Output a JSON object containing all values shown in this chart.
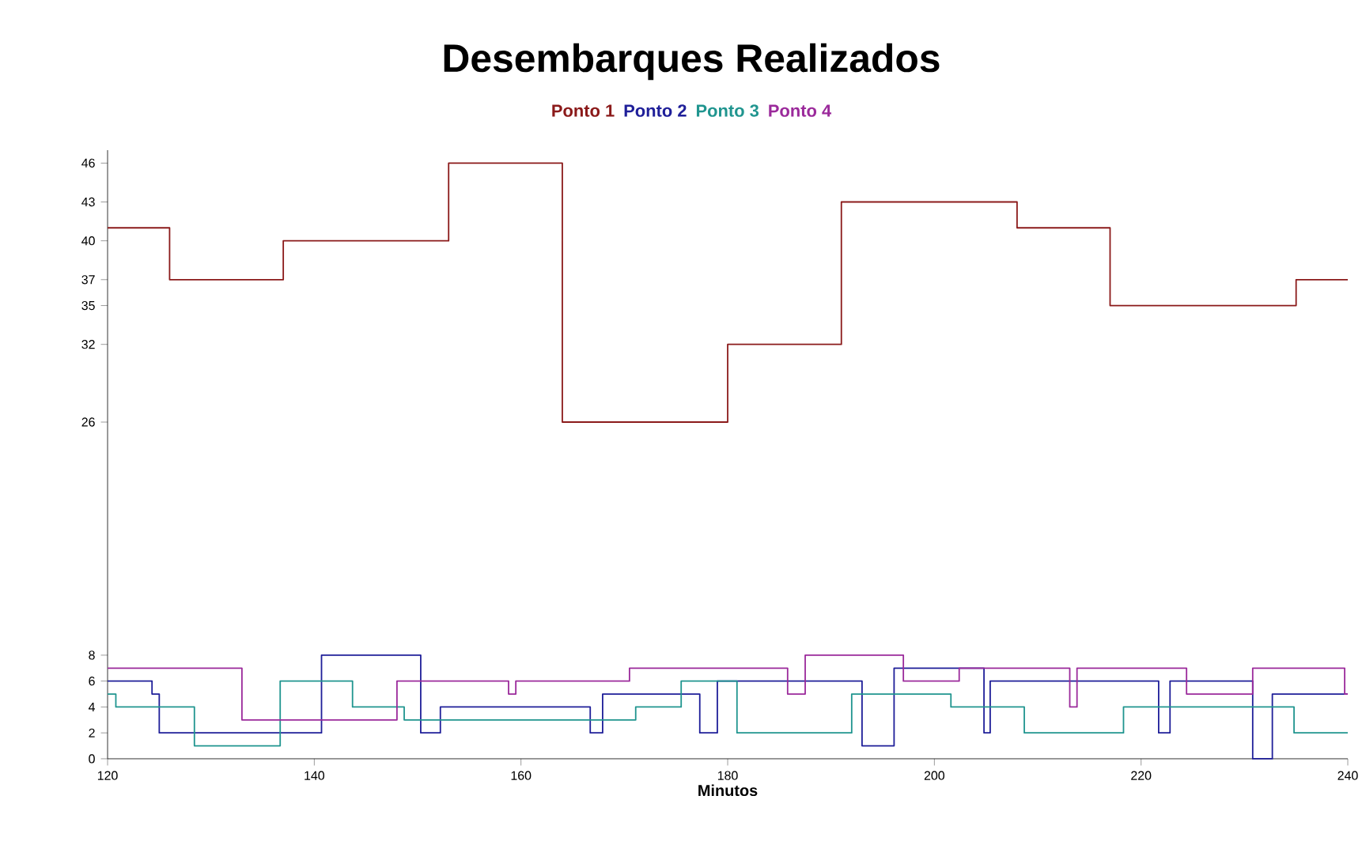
{
  "chart_data": {
    "type": "step",
    "title": "Desembarques Realizados",
    "xlabel": "Minutos",
    "xlim": [
      120,
      240
    ],
    "xticks": [
      120,
      140,
      160,
      180,
      200,
      220,
      240
    ],
    "ylim": [
      0,
      47
    ],
    "yticks": [
      0,
      2,
      4,
      6,
      8,
      26,
      32,
      35,
      37,
      40,
      43,
      46
    ],
    "grid": false,
    "legend": "top",
    "marker": "none",
    "line_style": "solid",
    "series": [
      {
        "name": "Ponto 1",
        "color": "#8b1a1a",
        "x": [
          120,
          126,
          137,
          153,
          164,
          180,
          191,
          208,
          217,
          235,
          240
        ],
        "values": [
          41,
          37,
          40,
          46,
          26,
          32,
          43,
          41,
          35,
          37,
          37
        ]
      },
      {
        "name": "Ponto 2",
        "color": "#1f1f99",
        "x": [
          120,
          124.3,
          125,
          140.7,
          150.3,
          152.2,
          166.7,
          167.9,
          177.3,
          179,
          193,
          196.1,
          204.8,
          205.4,
          221.7,
          222.8,
          230.8,
          232.7,
          240
        ],
        "values": [
          6,
          5,
          2,
          8,
          2,
          4,
          2,
          5,
          2,
          6,
          1,
          7,
          2,
          6,
          2,
          6,
          0,
          5,
          5
        ]
      },
      {
        "name": "Ponto 3",
        "color": "#20958f",
        "x": [
          120,
          120.8,
          128.4,
          136.7,
          143.7,
          148.7,
          171.1,
          175.5,
          180.9,
          192,
          201.6,
          208.7,
          218.3,
          234.8,
          240
        ],
        "values": [
          5,
          4,
          1,
          6,
          4,
          3,
          4,
          6,
          2,
          5,
          4,
          2,
          4,
          2,
          2
        ]
      },
      {
        "name": "Ponto 4",
        "color": "#9b2a9b",
        "x": [
          120,
          133,
          148,
          158.8,
          159.5,
          170.5,
          185.8,
          187.5,
          197,
          202.4,
          213.1,
          213.8,
          224.4,
          230.8,
          239.7,
          240
        ],
        "values": [
          7,
          3,
          6,
          5,
          6,
          7,
          5,
          8,
          6,
          7,
          4,
          7,
          5,
          7,
          5,
          5
        ]
      }
    ]
  }
}
